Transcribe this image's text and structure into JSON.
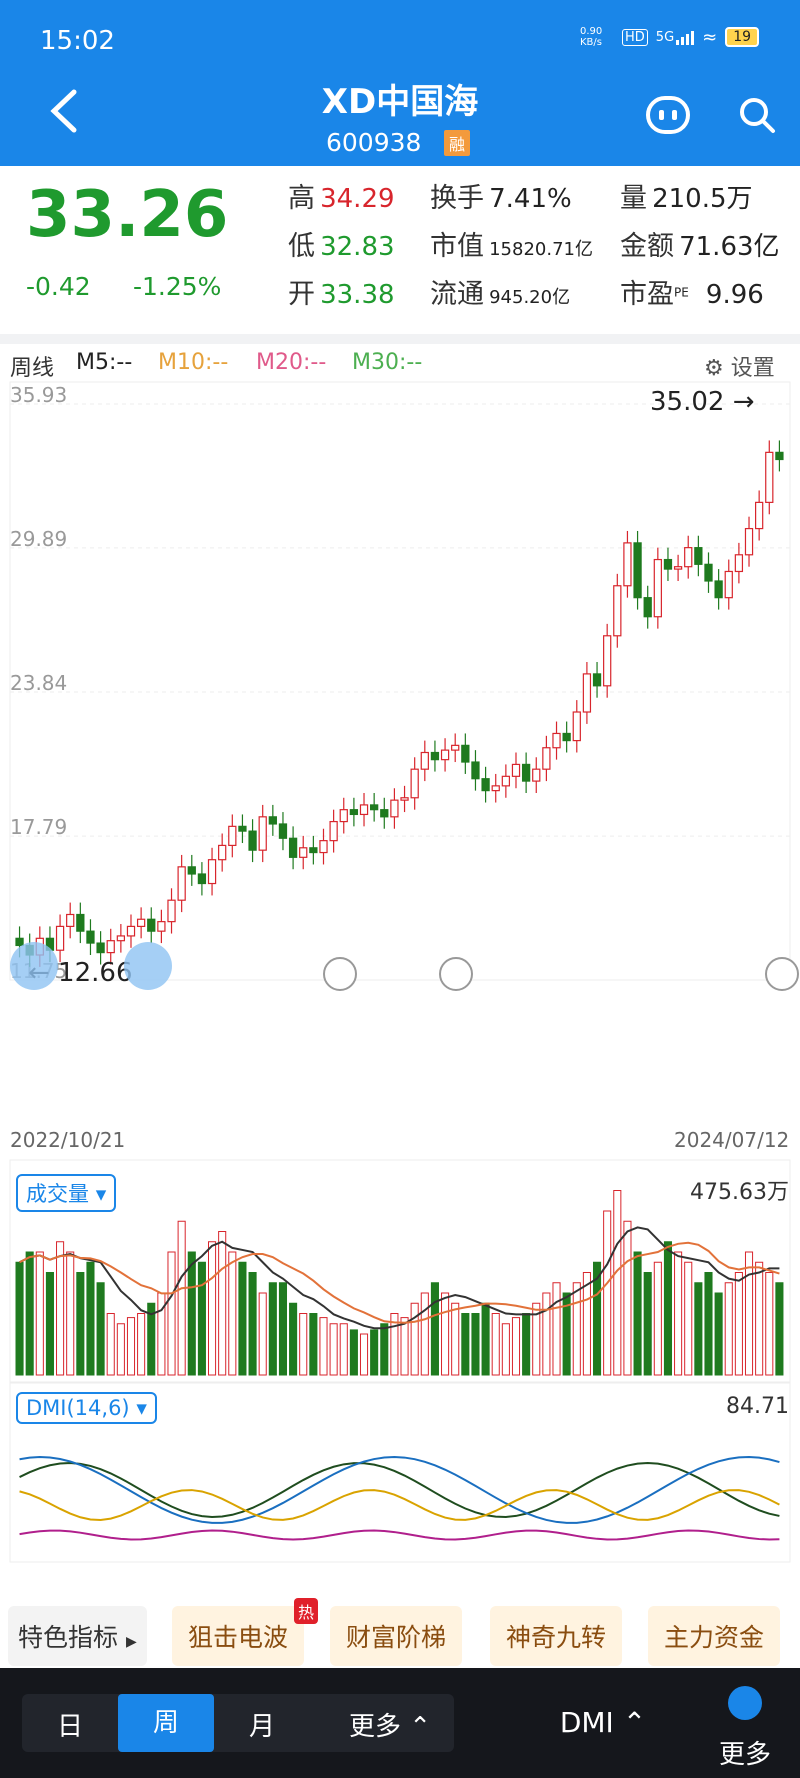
{
  "status": {
    "time": "15:02",
    "net_speed": "0.90 KB/s",
    "hd": "HD",
    "signal": "5G",
    "battery": "19"
  },
  "header": {
    "title": "XD中国海",
    "code": "600938",
    "badge": "融"
  },
  "quote": {
    "price": "33.26",
    "change": "-0.42",
    "change_pct": "-1.25%",
    "stats": [
      {
        "label": "高",
        "value": "34.29",
        "color": "red"
      },
      {
        "label": "换手",
        "value": "7.41%",
        "color": "dark"
      },
      {
        "label": "量",
        "value": "210.5万",
        "color": "dark"
      },
      {
        "label": "低",
        "value": "32.83",
        "color": "green"
      },
      {
        "label": "市值",
        "value": "15820.71亿",
        "color": "dark",
        "small": true
      },
      {
        "label": "金额",
        "value": "71.63亿",
        "color": "dark"
      },
      {
        "label": "开",
        "value": "33.38",
        "color": "green"
      },
      {
        "label": "流通",
        "value": "945.20亿",
        "color": "dark",
        "small": true
      },
      {
        "label": "市盈",
        "label_sup": "PE",
        "value": "9.96",
        "color": "dark"
      }
    ]
  },
  "ma": {
    "period": "周线",
    "m5": "M5:--",
    "m10": "M10:--",
    "m20": "M20:--",
    "m30": "M30:--",
    "settings": "设置"
  },
  "colors": {
    "up": "#d8252c",
    "down": "#1f7a1f",
    "accent": "#1a86e8",
    "m10": "#e6a23c",
    "m20": "#e05a8a",
    "m30": "#4caf50"
  },
  "chart_data": {
    "type": "candlestick",
    "y_ticks": [
      "35.93",
      "29.89",
      "23.84",
      "17.79",
      "11.75"
    ],
    "ylim": [
      11.75,
      35.93
    ],
    "max_label": "35.02",
    "min_label": "12.66",
    "date_start": "2022/10/21",
    "date_end": "2024/07/12",
    "closes": [
      13.2,
      12.8,
      13.5,
      13.0,
      14.0,
      14.5,
      13.8,
      13.3,
      12.9,
      13.4,
      13.6,
      14.0,
      14.3,
      13.8,
      14.2,
      15.1,
      16.5,
      16.2,
      15.8,
      16.8,
      17.4,
      18.2,
      18.0,
      17.2,
      18.6,
      18.3,
      17.7,
      16.9,
      17.3,
      17.1,
      17.6,
      18.4,
      18.9,
      18.7,
      19.1,
      18.9,
      18.6,
      19.3,
      19.4,
      20.6,
      21.3,
      21.0,
      21.4,
      21.6,
      20.9,
      20.2,
      19.7,
      19.9,
      20.3,
      20.8,
      20.1,
      20.6,
      21.5,
      22.1,
      21.8,
      23.0,
      24.6,
      24.1,
      26.2,
      28.3,
      30.1,
      27.8,
      27.0,
      29.4,
      29.0,
      29.1,
      29.9,
      29.2,
      28.5,
      27.8,
      28.9,
      29.6,
      30.7,
      31.8,
      33.9,
      33.6
    ],
    "volume": {
      "label": "成交量",
      "max": "475.63万",
      "bars": [
        0.55,
        0.6,
        0.6,
        0.5,
        0.65,
        0.6,
        0.5,
        0.55,
        0.45,
        0.3,
        0.25,
        0.28,
        0.3,
        0.35,
        0.4,
        0.6,
        0.75,
        0.6,
        0.55,
        0.65,
        0.7,
        0.6,
        0.55,
        0.5,
        0.4,
        0.45,
        0.45,
        0.35,
        0.3,
        0.3,
        0.28,
        0.25,
        0.25,
        0.22,
        0.2,
        0.22,
        0.25,
        0.3,
        0.28,
        0.35,
        0.4,
        0.45,
        0.4,
        0.35,
        0.3,
        0.3,
        0.35,
        0.3,
        0.25,
        0.28,
        0.3,
        0.35,
        0.4,
        0.45,
        0.4,
        0.45,
        0.5,
        0.55,
        0.8,
        0.9,
        0.75,
        0.6,
        0.5,
        0.55,
        0.65,
        0.6,
        0.55,
        0.45,
        0.5,
        0.4,
        0.45,
        0.5,
        0.6,
        0.55,
        0.5,
        0.45
      ]
    },
    "dmi": {
      "label": "DMI(14,6)",
      "max": "84.71"
    }
  },
  "tools": {
    "featured": "特色指标",
    "items": [
      "狙击电波",
      "财富阶梯",
      "神奇九转",
      "主力资金"
    ],
    "hot": "热"
  },
  "tabs": {
    "day": "日",
    "week": "周",
    "month": "月",
    "more": "更多",
    "indicator": "DMI",
    "menu": "更多"
  }
}
